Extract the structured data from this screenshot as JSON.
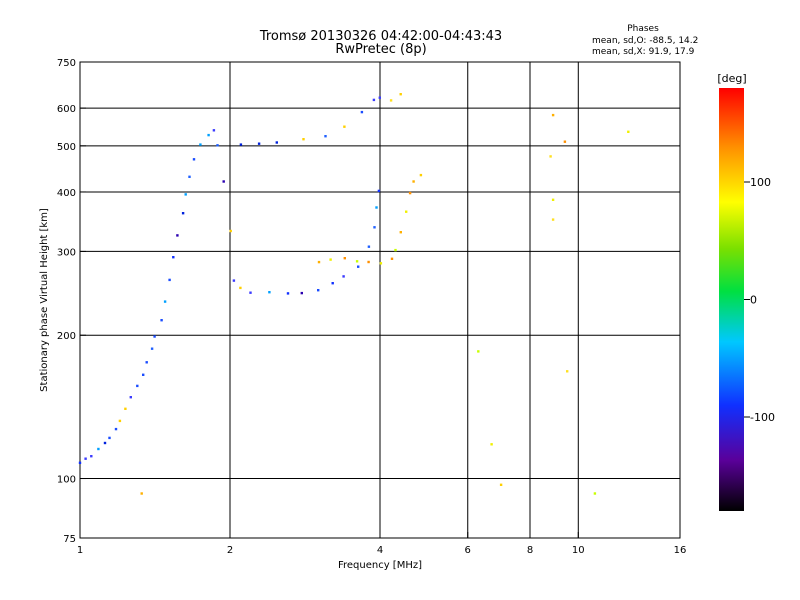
{
  "chart_data": {
    "type": "scatter",
    "title": "Tromsø 20130326 04:42:00-04:43:43",
    "subtitle": "RwPretec (8p)",
    "phase_stats": {
      "heading": "Phases",
      "line_o": "mean, sd,O: -88.5, 14.2",
      "line_x": "mean, sd,X:  91.9, 17.9"
    },
    "xlabel": "Frequency [MHz]",
    "ylabel": "Stationary phase Virtual Height [km]",
    "x_scale": "log",
    "y_scale": "log",
    "xlim": [
      1,
      16
    ],
    "ylim": [
      75,
      750
    ],
    "x_ticks": [
      1,
      2,
      4,
      6,
      8,
      10,
      16
    ],
    "x_tick_labels": [
      "1",
      "2",
      "4",
      "6",
      "8",
      "10",
      "16"
    ],
    "x_gridlines": [
      2,
      4,
      6,
      8,
      10
    ],
    "y_ticks": [
      75,
      100,
      200,
      300,
      400,
      500,
      600,
      750
    ],
    "y_tick_labels": [
      "75",
      "100",
      "200",
      "300",
      "400",
      "500",
      "600",
      "750"
    ],
    "y_gridlines": [
      100,
      200,
      300,
      400,
      500,
      600
    ],
    "grid": true,
    "colorbar": {
      "label": "[deg]",
      "range": [
        -180,
        180
      ],
      "ticks": [
        100,
        0,
        -100
      ],
      "tick_labels": [
        "100",
        "0",
        "-100"
      ],
      "colormap": "rainbow (black-purple-blue-cyan-green-yellow-orange-red)",
      "placement": "right"
    },
    "series": [
      {
        "mode": "O",
        "points": [
          [
            1.0,
            108
          ],
          [
            1.03,
            110
          ],
          [
            1.06,
            112
          ],
          [
            1.09,
            115
          ],
          [
            1.12,
            118
          ],
          [
            1.15,
            122
          ],
          [
            1.18,
            127
          ],
          [
            1.21,
            133
          ],
          [
            1.24,
            140
          ],
          [
            1.27,
            148
          ],
          [
            1.3,
            156
          ],
          [
            1.33,
            165
          ],
          [
            1.36,
            175
          ],
          [
            1.39,
            187
          ],
          [
            1.42,
            200
          ],
          [
            1.45,
            215
          ],
          [
            1.48,
            235
          ],
          [
            1.51,
            260
          ],
          [
            1.54,
            290
          ],
          [
            1.57,
            325
          ],
          [
            1.6,
            360
          ],
          [
            1.63,
            395
          ],
          [
            1.66,
            430
          ],
          [
            1.7,
            470
          ],
          [
            1.75,
            505
          ],
          [
            1.8,
            530
          ],
          [
            1.85,
            540
          ],
          [
            1.9,
            500
          ],
          [
            1.95,
            420
          ],
          [
            2.0,
            330
          ],
          [
            2.05,
            260
          ],
          [
            2.1,
            250
          ],
          [
            2.2,
            247
          ],
          [
            2.4,
            245
          ],
          [
            2.6,
            244
          ],
          [
            2.8,
            246
          ],
          [
            3.0,
            250
          ],
          [
            3.2,
            256
          ],
          [
            3.4,
            264
          ],
          [
            3.6,
            280
          ],
          [
            3.8,
            305
          ],
          [
            3.9,
            335
          ],
          [
            3.95,
            370
          ],
          [
            4.0,
            400
          ],
          [
            2.1,
            500
          ],
          [
            2.3,
            505
          ],
          [
            2.5,
            510
          ],
          [
            2.8,
            515
          ],
          [
            3.1,
            525
          ],
          [
            3.4,
            545
          ],
          [
            3.7,
            585
          ],
          [
            3.9,
            620
          ],
          [
            4.0,
            630
          ]
        ]
      },
      {
        "mode": "X",
        "points": [
          [
            3.0,
            285
          ],
          [
            3.2,
            290
          ],
          [
            3.4,
            292
          ],
          [
            3.6,
            288
          ],
          [
            3.8,
            285
          ],
          [
            4.0,
            285
          ],
          [
            4.2,
            290
          ],
          [
            4.3,
            300
          ],
          [
            4.4,
            330
          ],
          [
            4.5,
            365
          ],
          [
            4.6,
            400
          ],
          [
            4.7,
            420
          ],
          [
            4.8,
            435
          ],
          [
            4.2,
            620
          ],
          [
            4.4,
            640
          ]
        ]
      }
    ],
    "scattered_points": [
      [
        6.3,
        185
      ],
      [
        6.7,
        118
      ],
      [
        7.0,
        97
      ],
      [
        8.9,
        580
      ],
      [
        8.8,
        475
      ],
      [
        8.9,
        385
      ],
      [
        8.9,
        350
      ],
      [
        9.4,
        510
      ],
      [
        9.5,
        168
      ],
      [
        10.8,
        93
      ],
      [
        12.6,
        535
      ],
      [
        1.33,
        93
      ]
    ]
  }
}
